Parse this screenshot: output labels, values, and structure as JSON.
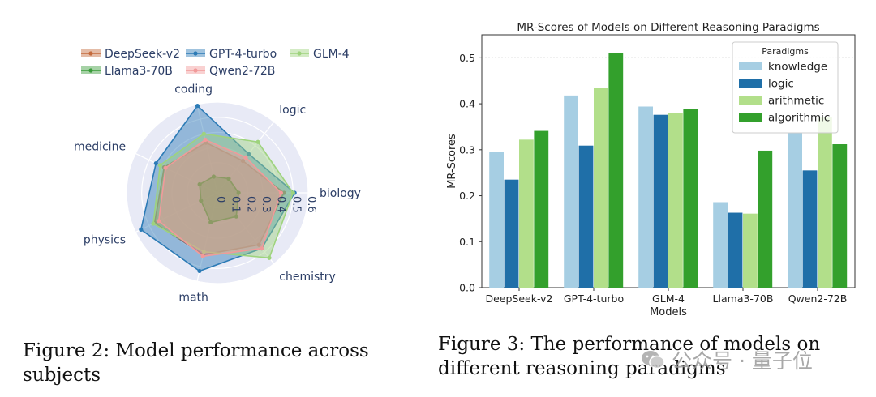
{
  "chart_data": [
    {
      "type": "radar",
      "title": "",
      "axes": [
        "biology",
        "logic",
        "coding",
        "medicine",
        "physics",
        "math",
        "chemistry"
      ],
      "radial_ticks": [
        "0",
        "0.1",
        "0.2",
        "0.3",
        "0.4",
        "0.5",
        "0.6"
      ],
      "rmax": 0.6,
      "series": [
        {
          "name": "DeepSeek-v2",
          "color": "#c46a3c",
          "values": [
            0.44,
            0.27,
            0.34,
            0.39,
            0.46,
            0.42,
            0.44
          ]
        },
        {
          "name": "GPT-4-turbo",
          "color": "#2c7bb6",
          "values": [
            0.51,
            0.33,
            0.59,
            0.45,
            0.56,
            0.53,
            0.47
          ]
        },
        {
          "name": "GLM-4",
          "color": "#9ed37d",
          "values": [
            0.5,
            0.43,
            0.4,
            0.42,
            0.47,
            0.4,
            0.55
          ]
        },
        {
          "name": "Llama3-70B",
          "color": "#3a9c3a",
          "values": [
            0.14,
            0.12,
            0.11,
            0.13,
            0.12,
            0.2,
            0.2
          ]
        },
        {
          "name": "Qwen2-72B",
          "color": "#f19a9a",
          "values": [
            0.42,
            0.3,
            0.36,
            0.38,
            0.43,
            0.43,
            0.47
          ]
        }
      ],
      "legend": [
        "DeepSeek-v2",
        "GPT-4-turbo",
        "GLM-4",
        "Llama3-70B",
        "Qwen2-72B"
      ],
      "legend_position": "top"
    },
    {
      "type": "bar",
      "title": "MR-Scores of Models on Different Reasoning Paradigms",
      "xlabel": "Models",
      "ylabel": "MR-Scores",
      "ylim": [
        0,
        0.55
      ],
      "yticks": [
        "0.0",
        "0.1",
        "0.2",
        "0.3",
        "0.4",
        "0.5"
      ],
      "reference_line": 0.5,
      "categories": [
        "DeepSeek-v2",
        "GPT-4-turbo",
        "GLM-4",
        "Llama3-70B",
        "Qwen2-72B"
      ],
      "legend_title": "Paradigms",
      "legend_position": "top-right",
      "series": [
        {
          "name": "knowledge",
          "color": "#a6cee3",
          "values": [
            0.296,
            0.418,
            0.394,
            0.186,
            0.336
          ]
        },
        {
          "name": "logic",
          "color": "#1f6fa8",
          "values": [
            0.235,
            0.309,
            0.376,
            0.163,
            0.255
          ]
        },
        {
          "name": "arithmetic",
          "color": "#b2df8a",
          "values": [
            0.322,
            0.434,
            0.38,
            0.161,
            0.37
          ]
        },
        {
          "name": "algorithmic",
          "color": "#33a02c",
          "values": [
            0.341,
            0.51,
            0.388,
            0.298,
            0.312
          ]
        }
      ]
    }
  ],
  "captions": {
    "left": "Figure 2: Model performance across subjects",
    "right": "Figure 3: The performance of models on different reasoning paradigms"
  },
  "watermark": {
    "text": "公众号 · 量子位"
  }
}
